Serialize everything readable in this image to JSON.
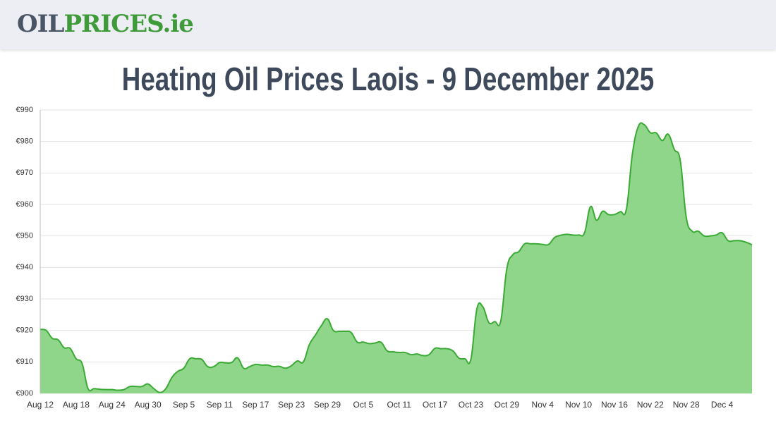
{
  "header": {
    "logo_part1": "OIL",
    "logo_part2": "PRICES.ie"
  },
  "chart_data": {
    "type": "area",
    "title": "Heating Oil Prices Laois - 9 December 2025",
    "categories": [
      "Aug 12",
      null,
      null,
      null,
      null,
      null,
      "Aug 18",
      null,
      null,
      null,
      null,
      null,
      "Aug 24",
      null,
      null,
      null,
      null,
      null,
      "Aug 30",
      null,
      null,
      null,
      null,
      null,
      "Sep 5",
      null,
      null,
      null,
      null,
      null,
      "Sep 11",
      null,
      null,
      null,
      null,
      null,
      "Sep 17",
      null,
      null,
      null,
      null,
      null,
      "Sep 23",
      null,
      null,
      null,
      null,
      null,
      "Sep 29",
      null,
      null,
      null,
      null,
      null,
      "Oct 5",
      null,
      null,
      null,
      null,
      null,
      "Oct 11",
      null,
      null,
      null,
      null,
      null,
      "Oct 17",
      null,
      null,
      null,
      null,
      null,
      "Oct 23",
      null,
      null,
      null,
      null,
      null,
      "Oct 29",
      null,
      null,
      null,
      null,
      null,
      "Nov 4",
      null,
      null,
      null,
      null,
      null,
      "Nov 10",
      null,
      null,
      null,
      null,
      null,
      "Nov 16",
      null,
      null,
      null,
      null,
      null,
      "Nov 22",
      null,
      null,
      null,
      null,
      null,
      "Nov 28",
      null,
      null,
      null,
      null,
      null,
      "Dec 4",
      null,
      null,
      null,
      null,
      null
    ],
    "values": [
      920.3,
      920,
      917.5,
      917,
      914.5,
      914.3,
      911,
      909.5,
      901.5,
      901.5,
      901.3,
      901.2,
      901.2,
      901,
      901.2,
      902.2,
      902.2,
      902.2,
      903,
      901.5,
      900.3,
      901.5,
      905,
      907,
      908,
      911,
      911,
      910.8,
      908.5,
      908.5,
      909.8,
      909.7,
      909.8,
      911.3,
      908,
      908.5,
      909.2,
      909,
      909,
      908.5,
      908.6,
      908,
      908.8,
      910.3,
      910,
      915.5,
      918.5,
      921.5,
      923.7,
      920,
      919.7,
      919.7,
      919.3,
      916.3,
      916.3,
      915.8,
      916,
      916.2,
      913.5,
      913.2,
      913,
      913,
      912.3,
      912.5,
      912,
      912.3,
      914.3,
      914.2,
      914.2,
      913.5,
      911.2,
      911,
      910.8,
      926.8,
      927.5,
      922.5,
      922.8,
      923,
      939.5,
      944,
      945,
      947.5,
      947.5,
      947.5,
      947.3,
      947.3,
      949.5,
      950.2,
      950.5,
      950.3,
      950.3,
      951,
      959.3,
      955,
      957.8,
      956.8,
      956.8,
      957.7,
      958.5,
      976,
      984.8,
      985.3,
      982.8,
      982.7,
      980.3,
      982.3,
      977.5,
      974,
      956,
      951.5,
      951.5,
      950,
      950,
      950.3,
      951,
      948.5,
      948.5,
      948.5,
      948,
      947.2
    ],
    "color": "#3aaa35",
    "fill_color": "#8fd68a",
    "ylim": [
      900,
      990
    ],
    "yticks": [
      {
        "value": 900,
        "label": "€900"
      },
      {
        "value": 910,
        "label": "€910"
      },
      {
        "value": 920,
        "label": "€920"
      },
      {
        "value": 930,
        "label": "€930"
      },
      {
        "value": 940,
        "label": "€940"
      },
      {
        "value": 950,
        "label": "€950"
      },
      {
        "value": 960,
        "label": "€960"
      },
      {
        "value": 970,
        "label": "€970"
      },
      {
        "value": 980,
        "label": "€980"
      },
      {
        "value": 990,
        "label": "€990"
      }
    ],
    "grid": true
  }
}
